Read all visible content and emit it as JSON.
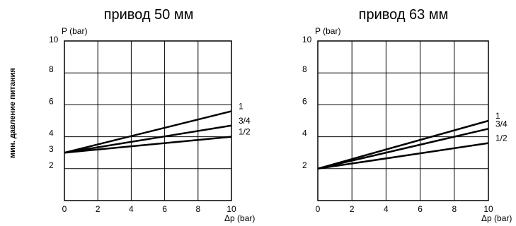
{
  "y_axis_caption": "мин. давление питания",
  "chart_data": [
    {
      "type": "line",
      "title": "привод 50 мм",
      "xlabel": "Δp (bar)",
      "ylabel": "P (bar)",
      "xlim": [
        0,
        10
      ],
      "ylim": [
        0,
        10
      ],
      "x_ticks": [
        "0",
        "2",
        "4",
        "6",
        "8",
        "10"
      ],
      "y_ticks": [
        "2",
        "3",
        "4",
        "6",
        "8",
        "10"
      ],
      "grid": true,
      "series": [
        {
          "name": "1",
          "x": [
            0,
            10
          ],
          "y": [
            3,
            5.6
          ]
        },
        {
          "name": "3/4",
          "x": [
            0,
            10
          ],
          "y": [
            3,
            4.7
          ]
        },
        {
          "name": "1/2",
          "x": [
            0,
            10
          ],
          "y": [
            3,
            4.0
          ]
        }
      ]
    },
    {
      "type": "line",
      "title": "привод 63 мм",
      "xlabel": "Δp (bar)",
      "ylabel": "P (bar)",
      "xlim": [
        0,
        10
      ],
      "ylim": [
        0,
        10
      ],
      "x_ticks": [
        "0",
        "2",
        "4",
        "6",
        "8",
        "10"
      ],
      "y_ticks": [
        "2",
        "4",
        "6",
        "8",
        "10"
      ],
      "grid": true,
      "series": [
        {
          "name": "1",
          "x": [
            0,
            10
          ],
          "y": [
            2,
            5.0
          ]
        },
        {
          "name": "3/4",
          "x": [
            0,
            10
          ],
          "y": [
            2,
            4.5
          ]
        },
        {
          "name": "1/2",
          "x": [
            0,
            10
          ],
          "y": [
            2,
            3.6
          ]
        }
      ]
    }
  ]
}
